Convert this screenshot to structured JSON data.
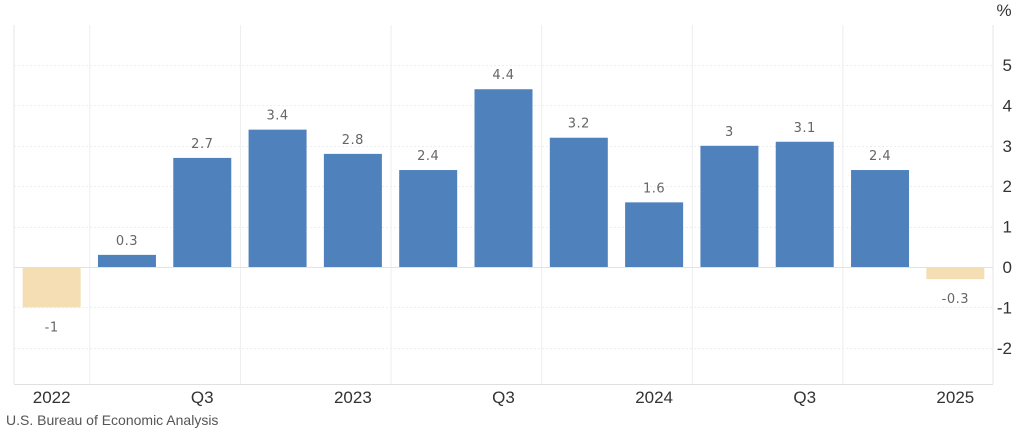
{
  "source": "U.S. Bureau of Economic Analysis",
  "chart_data": {
    "type": "bar",
    "unit": "%",
    "categories": [
      "2022 Q1",
      "2022 Q2",
      "2022 Q3",
      "2022 Q4",
      "2023 Q1",
      "2023 Q2",
      "2023 Q3",
      "2023 Q4",
      "2024 Q1",
      "2024 Q2",
      "2024 Q3",
      "2024 Q4",
      "2025 Q1"
    ],
    "values": [
      -1,
      0.3,
      2.7,
      3.4,
      2.8,
      2.4,
      4.4,
      3.2,
      1.6,
      3,
      3.1,
      2.4,
      -0.3
    ],
    "x_tick_labels": [
      {
        "index": 0,
        "label": "2022"
      },
      {
        "index": 2,
        "label": "Q3"
      },
      {
        "index": 4,
        "label": "2023"
      },
      {
        "index": 6,
        "label": "Q3"
      },
      {
        "index": 8,
        "label": "2024"
      },
      {
        "index": 10,
        "label": "Q3"
      },
      {
        "index": 12,
        "label": "2025"
      }
    ],
    "y_ticks": [
      5,
      4,
      3,
      2,
      1,
      0,
      -1,
      -2
    ],
    "ylim": [
      -2.9,
      5.6
    ],
    "grid": true,
    "colors": {
      "positive": "#4f81bd",
      "negative": "#f5deb3"
    }
  }
}
